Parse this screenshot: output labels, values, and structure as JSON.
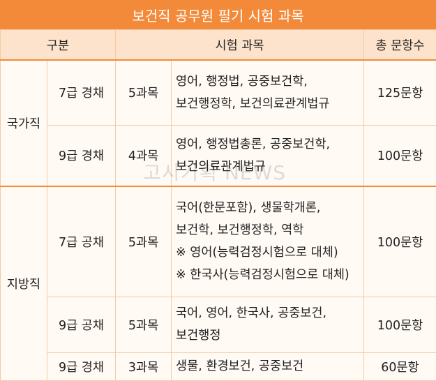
{
  "title": "보건직 공무원 필기 시험 과목",
  "headers": {
    "category": "구분",
    "subjects": "시험 과목",
    "total": "총 문항수"
  },
  "watermark": "고시기획 NEWS",
  "groups": [
    {
      "name": "국가직",
      "rows": [
        {
          "grade": "7급 경채",
          "count": "5과목",
          "subjects": [
            "영어, 행정법, 공중보건학,",
            "보건행정학, 보건의료관계법규"
          ],
          "total": "125문항"
        },
        {
          "grade": "9급 경채",
          "count": "4과목",
          "subjects": [
            "영어, 행정법총론, 공중보건학,",
            "보건의료관계법규"
          ],
          "total": "100문항"
        }
      ]
    },
    {
      "name": "지방직",
      "rows": [
        {
          "grade": "7급 공채",
          "count": "5과목",
          "subjects": [
            "국어(한문포함), 생물학개론,",
            "보건학, 보건행정학, 역학",
            "※ 영어(능력검정시험으로 대체)",
            "※ 한국사(능력검정시험으로 대체)"
          ],
          "total": "100문항"
        },
        {
          "grade": "9급 공채",
          "count": "5과목",
          "subjects": [
            "국어, 영어, 한국사, 공중보건,",
            "보건행정"
          ],
          "total": "100문항"
        },
        {
          "grade": "9급 경채",
          "count": "3과목",
          "subjects": [
            "생물, 환경보건, 공중보건"
          ],
          "total": "60문항"
        }
      ]
    }
  ]
}
